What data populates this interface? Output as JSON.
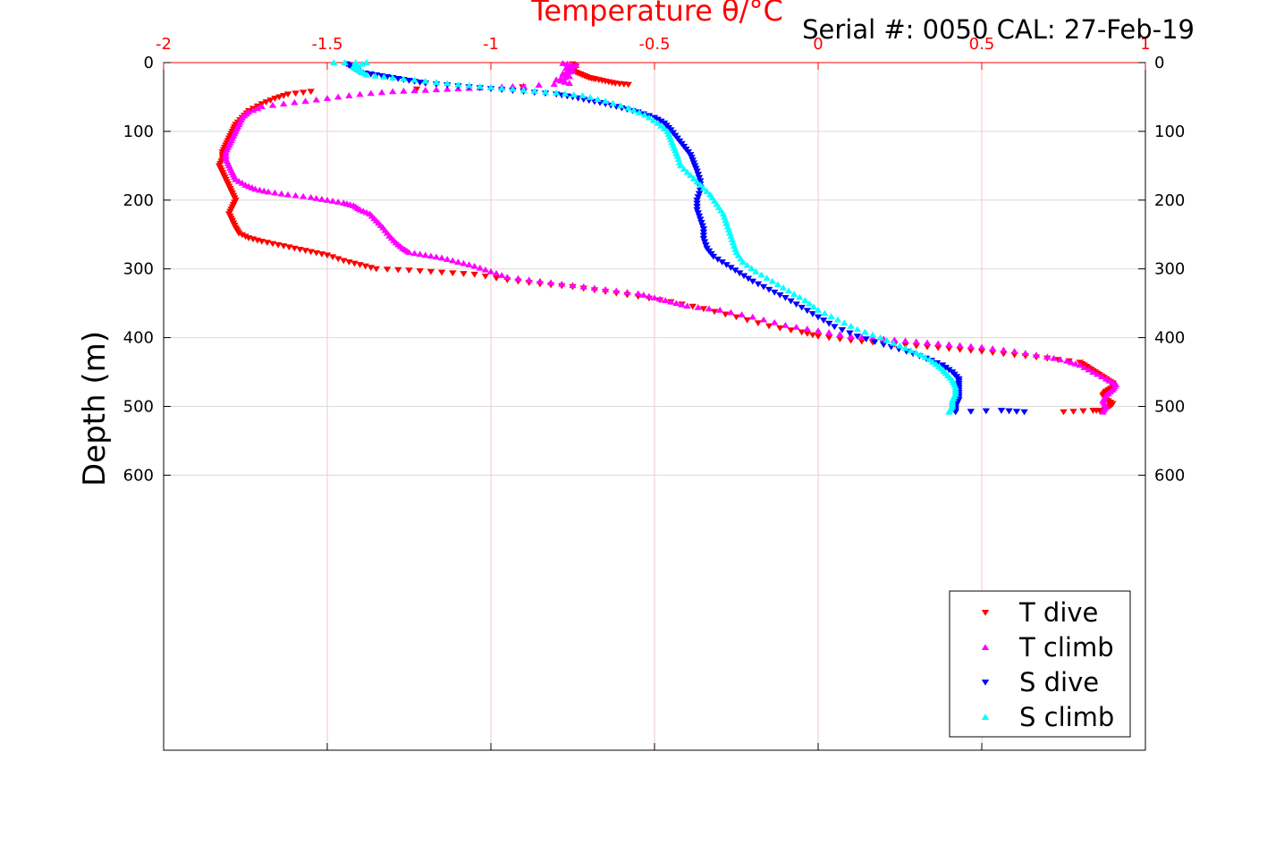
{
  "header": {
    "serial_text": "Serial #: 0050  CAL: 27-Feb-19"
  },
  "chart_data": {
    "type": "scatter",
    "title": "Temperature θ/°C",
    "xlabel": "Temperature θ/°C",
    "ylabel": "Depth (m)",
    "xlim": [
      -2,
      1
    ],
    "ylim": [
      0,
      1000
    ],
    "y_reversed": true,
    "x_ticks": [
      "-2",
      "-1.5",
      "-1",
      "-0.5",
      "0",
      "0.5",
      "1"
    ],
    "x_tick_values": [
      -2,
      -1.5,
      -1,
      -0.5,
      0,
      0.5,
      1
    ],
    "y_ticks": [
      "0",
      "100",
      "200",
      "300",
      "400",
      "500",
      "600"
    ],
    "y_tick_values": [
      0,
      100,
      200,
      300,
      400,
      500,
      600
    ],
    "grid": true,
    "axis_color": "#ff0000",
    "legend_position": "bottom-right",
    "series": [
      {
        "name": "T dive",
        "color": "#ff0000",
        "marker": "triangle-down",
        "points": [
          [
            -0.75,
            2
          ],
          [
            -0.74,
            6
          ],
          [
            -0.76,
            10
          ],
          [
            -0.74,
            14
          ],
          [
            -0.72,
            18
          ],
          [
            -0.7,
            22
          ],
          [
            -0.68,
            24
          ],
          [
            -0.65,
            27
          ],
          [
            -0.62,
            30
          ],
          [
            -0.58,
            32
          ],
          [
            -1.55,
            42
          ],
          [
            -1.62,
            46
          ],
          [
            -1.66,
            52
          ],
          [
            -1.7,
            60
          ],
          [
            -1.74,
            70
          ],
          [
            -1.76,
            80
          ],
          [
            -1.78,
            90
          ],
          [
            -1.79,
            100
          ],
          [
            -1.8,
            110
          ],
          [
            -1.81,
            120
          ],
          [
            -1.82,
            130
          ],
          [
            -1.82,
            140
          ],
          [
            -1.83,
            150
          ],
          [
            -1.82,
            160
          ],
          [
            -1.81,
            170
          ],
          [
            -1.8,
            180
          ],
          [
            -1.79,
            190
          ],
          [
            -1.78,
            200
          ],
          [
            -1.79,
            210
          ],
          [
            -1.8,
            220
          ],
          [
            -1.79,
            230
          ],
          [
            -1.78,
            240
          ],
          [
            -1.77,
            248
          ],
          [
            -1.74,
            255
          ],
          [
            -1.7,
            260
          ],
          [
            -1.65,
            265
          ],
          [
            -1.6,
            270
          ],
          [
            -1.55,
            275
          ],
          [
            -1.5,
            280
          ],
          [
            -1.45,
            288
          ],
          [
            -1.4,
            294
          ],
          [
            -1.35,
            300
          ],
          [
            -1.25,
            302
          ],
          [
            -1.15,
            305
          ],
          [
            -1.05,
            308
          ],
          [
            -0.95,
            316
          ],
          [
            -0.85,
            322
          ],
          [
            -0.75,
            326
          ],
          [
            -0.65,
            333
          ],
          [
            -0.55,
            340
          ],
          [
            -0.45,
            348
          ],
          [
            -0.35,
            358
          ],
          [
            -0.25,
            370
          ],
          [
            -0.15,
            383
          ],
          [
            -0.05,
            392
          ],
          [
            0.0,
            398
          ],
          [
            0.1,
            404
          ],
          [
            0.2,
            408
          ],
          [
            0.3,
            412
          ],
          [
            0.4,
            416
          ],
          [
            0.5,
            420
          ],
          [
            0.6,
            425
          ],
          [
            0.7,
            430
          ],
          [
            0.8,
            436
          ],
          [
            0.82,
            442
          ],
          [
            0.84,
            448
          ],
          [
            0.86,
            454
          ],
          [
            0.88,
            460
          ],
          [
            0.9,
            466
          ],
          [
            0.9,
            472
          ],
          [
            0.88,
            478
          ],
          [
            0.87,
            484
          ],
          [
            0.88,
            490
          ],
          [
            0.9,
            496
          ],
          [
            0.89,
            500
          ],
          [
            0.87,
            506
          ],
          [
            0.84,
            506
          ],
          [
            0.75,
            508
          ]
        ]
      },
      {
        "name": "T climb",
        "color": "#ff00ff",
        "marker": "triangle-up",
        "points": [
          [
            -0.78,
            1
          ],
          [
            -0.74,
            4
          ],
          [
            -0.77,
            8
          ],
          [
            -0.75,
            12
          ],
          [
            -0.78,
            16
          ],
          [
            -0.76,
            20
          ],
          [
            -0.8,
            25
          ],
          [
            -0.76,
            30
          ],
          [
            -0.9,
            34
          ],
          [
            -1.0,
            36
          ],
          [
            -1.1,
            38
          ],
          [
            -1.2,
            40
          ],
          [
            -1.3,
            42
          ],
          [
            -1.4,
            46
          ],
          [
            -1.5,
            52
          ],
          [
            -1.6,
            58
          ],
          [
            -1.7,
            64
          ],
          [
            -1.74,
            72
          ],
          [
            -1.76,
            80
          ],
          [
            -1.77,
            90
          ],
          [
            -1.78,
            100
          ],
          [
            -1.79,
            110
          ],
          [
            -1.8,
            120
          ],
          [
            -1.81,
            130
          ],
          [
            -1.81,
            140
          ],
          [
            -1.8,
            150
          ],
          [
            -1.79,
            160
          ],
          [
            -1.78,
            170
          ],
          [
            -1.75,
            178
          ],
          [
            -1.72,
            184
          ],
          [
            -1.68,
            188
          ],
          [
            -1.62,
            192
          ],
          [
            -1.55,
            196
          ],
          [
            -1.5,
            200
          ],
          [
            -1.45,
            204
          ],
          [
            -1.42,
            208
          ],
          [
            -1.4,
            214
          ],
          [
            -1.37,
            220
          ],
          [
            -1.35,
            230
          ],
          [
            -1.33,
            240
          ],
          [
            -1.31,
            252
          ],
          [
            -1.29,
            262
          ],
          [
            -1.27,
            270
          ],
          [
            -1.25,
            276
          ],
          [
            -1.2,
            280
          ],
          [
            -1.15,
            284
          ],
          [
            -1.1,
            290
          ],
          [
            -1.05,
            296
          ],
          [
            -1.0,
            304
          ],
          [
            -0.95,
            312
          ],
          [
            -0.85,
            318
          ],
          [
            -0.75,
            324
          ],
          [
            -0.65,
            330
          ],
          [
            -0.55,
            336
          ],
          [
            -0.5,
            342
          ],
          [
            -0.45,
            348
          ],
          [
            -0.4,
            354
          ],
          [
            -0.3,
            360
          ],
          [
            -0.2,
            370
          ],
          [
            -0.1,
            382
          ],
          [
            0.0,
            390
          ],
          [
            0.1,
            398
          ],
          [
            0.2,
            402
          ],
          [
            0.3,
            406
          ],
          [
            0.4,
            410
          ],
          [
            0.5,
            414
          ],
          [
            0.6,
            420
          ],
          [
            0.7,
            428
          ],
          [
            0.76,
            434
          ],
          [
            0.8,
            440
          ],
          [
            0.84,
            450
          ],
          [
            0.88,
            460
          ],
          [
            0.91,
            468
          ],
          [
            0.9,
            476
          ],
          [
            0.88,
            484
          ],
          [
            0.87,
            492
          ],
          [
            0.88,
            500
          ],
          [
            0.87,
            508
          ]
        ]
      },
      {
        "name": "S dive",
        "color": "#0000ff",
        "marker": "triangle-down",
        "points": [
          [
            -1.44,
            2
          ],
          [
            -1.42,
            8
          ],
          [
            -1.4,
            14
          ],
          [
            -1.35,
            18
          ],
          [
            -1.3,
            22
          ],
          [
            -1.25,
            26
          ],
          [
            -1.2,
            30
          ],
          [
            -1.1,
            34
          ],
          [
            -1.0,
            38
          ],
          [
            -0.9,
            42
          ],
          [
            -0.8,
            46
          ],
          [
            -0.75,
            50
          ],
          [
            -0.7,
            55
          ],
          [
            -0.65,
            60
          ],
          [
            -0.6,
            66
          ],
          [
            -0.55,
            72
          ],
          [
            -0.5,
            80
          ],
          [
            -0.47,
            88
          ],
          [
            -0.45,
            98
          ],
          [
            -0.43,
            110
          ],
          [
            -0.41,
            122
          ],
          [
            -0.39,
            134
          ],
          [
            -0.38,
            146
          ],
          [
            -0.37,
            158
          ],
          [
            -0.36,
            172
          ],
          [
            -0.36,
            186
          ],
          [
            -0.37,
            200
          ],
          [
            -0.37,
            214
          ],
          [
            -0.36,
            228
          ],
          [
            -0.35,
            242
          ],
          [
            -0.35,
            256
          ],
          [
            -0.34,
            270
          ],
          [
            -0.32,
            282
          ],
          [
            -0.28,
            294
          ],
          [
            -0.24,
            306
          ],
          [
            -0.2,
            318
          ],
          [
            -0.15,
            330
          ],
          [
            -0.1,
            342
          ],
          [
            -0.05,
            356
          ],
          [
            0.0,
            370
          ],
          [
            0.05,
            384
          ],
          [
            0.12,
            398
          ],
          [
            0.2,
            410
          ],
          [
            0.27,
            420
          ],
          [
            0.33,
            430
          ],
          [
            0.38,
            440
          ],
          [
            0.41,
            450
          ],
          [
            0.43,
            460
          ],
          [
            0.43,
            470
          ],
          [
            0.43,
            480
          ],
          [
            0.43,
            490
          ],
          [
            0.42,
            500
          ],
          [
            0.42,
            508
          ],
          [
            0.56,
            506
          ],
          [
            0.63,
            508
          ]
        ]
      },
      {
        "name": "S climb",
        "color": "#00ffff",
        "marker": "triangle-up",
        "points": [
          [
            -1.48,
            0
          ],
          [
            -1.38,
            0
          ],
          [
            -1.42,
            6
          ],
          [
            -1.4,
            12
          ],
          [
            -1.38,
            18
          ],
          [
            -1.3,
            22
          ],
          [
            -1.2,
            27
          ],
          [
            -1.1,
            32
          ],
          [
            -1.0,
            36
          ],
          [
            -0.9,
            40
          ],
          [
            -0.8,
            44
          ],
          [
            -0.72,
            48
          ],
          [
            -0.65,
            56
          ],
          [
            -0.58,
            66
          ],
          [
            -0.53,
            76
          ],
          [
            -0.49,
            88
          ],
          [
            -0.46,
            100
          ],
          [
            -0.45,
            112
          ],
          [
            -0.44,
            124
          ],
          [
            -0.43,
            136
          ],
          [
            -0.42,
            150
          ],
          [
            -0.39,
            164
          ],
          [
            -0.36,
            178
          ],
          [
            -0.33,
            192
          ],
          [
            -0.31,
            206
          ],
          [
            -0.29,
            220
          ],
          [
            -0.28,
            234
          ],
          [
            -0.27,
            248
          ],
          [
            -0.26,
            262
          ],
          [
            -0.25,
            276
          ],
          [
            -0.23,
            290
          ],
          [
            -0.19,
            304
          ],
          [
            -0.14,
            318
          ],
          [
            -0.09,
            332
          ],
          [
            -0.04,
            346
          ],
          [
            0.0,
            360
          ],
          [
            0.06,
            374
          ],
          [
            0.12,
            388
          ],
          [
            0.19,
            400
          ],
          [
            0.25,
            412
          ],
          [
            0.3,
            422
          ],
          [
            0.34,
            432
          ],
          [
            0.37,
            442
          ],
          [
            0.39,
            452
          ],
          [
            0.41,
            462
          ],
          [
            0.42,
            472
          ],
          [
            0.42,
            482
          ],
          [
            0.41,
            492
          ],
          [
            0.41,
            500
          ],
          [
            0.4,
            508
          ]
        ]
      }
    ]
  }
}
